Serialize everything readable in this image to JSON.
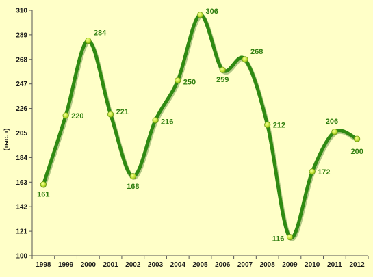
{
  "chart_data": {
    "type": "line",
    "title": "",
    "xlabel": "",
    "ylabel": "(тыс. т)",
    "x": [
      "1998",
      "1999",
      "2000",
      "2001",
      "2002",
      "2003",
      "2004",
      "2005",
      "2006",
      "2007",
      "2008",
      "2009",
      "2010",
      "2011",
      "2012"
    ],
    "values": [
      161,
      220,
      284,
      221,
      168,
      216,
      250,
      306,
      259,
      268,
      212,
      116,
      172,
      206,
      200
    ],
    "ylim": [
      100,
      310
    ],
    "yticks": [
      100,
      121,
      142,
      163,
      184,
      205,
      226,
      247,
      268,
      289,
      310
    ],
    "grid": false,
    "legend": "none",
    "colors": {
      "background": "#ffffc8",
      "line": "#2f8a12",
      "marker": "#c8e63c",
      "label": "#2e7d0e"
    }
  }
}
